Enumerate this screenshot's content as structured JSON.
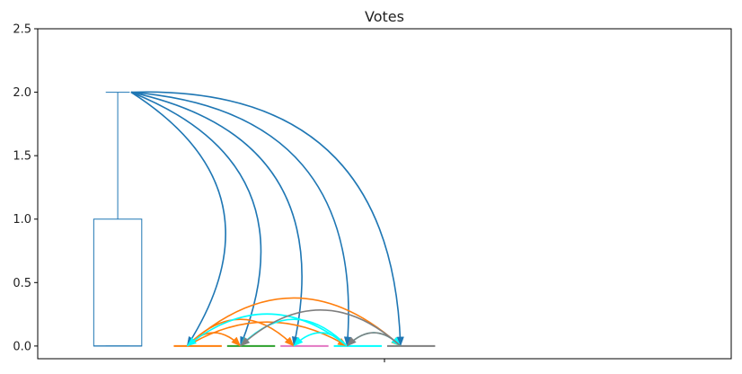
{
  "chart_data": {
    "type": "boxplot-arcs",
    "title": "Votes",
    "xlabel": "",
    "ylabel": "",
    "xlim": [
      -1.3,
      1.3
    ],
    "ylim": [
      -0.1,
      2.5
    ],
    "yticks": [
      0.0,
      0.5,
      1.0,
      1.5,
      2.0,
      2.5
    ],
    "ytick_labels": [
      "0.0",
      "0.5",
      "1.0",
      "1.5",
      "2.0",
      "2.5"
    ],
    "xticks": [
      0
    ],
    "xtick_labels": [
      ""
    ],
    "box": {
      "x": -1.0,
      "width": 0.18,
      "q1": 0.0,
      "median": 0.0,
      "q3": 1.0,
      "whisker_low": 0.0,
      "whisker_high": 2.0,
      "color": "#1f77b4"
    },
    "segments": [
      {
        "name": "",
        "x_start": -0.79,
        "x_end": -0.61,
        "y": 0.0,
        "color": "#ff7f0e"
      },
      {
        "name": "",
        "x_start": -0.59,
        "x_end": -0.41,
        "y": 0.0,
        "color": "#2ca02c"
      },
      {
        "name": "",
        "x_start": -0.39,
        "x_end": -0.21,
        "y": 0.0,
        "color": "#e377c2"
      },
      {
        "name": "",
        "x_start": -0.19,
        "x_end": -0.01,
        "y": 0.0,
        "color": "#00ffff"
      },
      {
        "name": "",
        "x_start": 0.01,
        "x_end": 0.19,
        "y": 0.0,
        "color": "#7f7f7f"
      }
    ],
    "arcs": [
      {
        "from": [
          -0.95,
          2.0
        ],
        "to": [
          -0.74,
          0.0
        ],
        "color": "#1f77b4",
        "bend": 0.5
      },
      {
        "from": [
          -0.95,
          2.0
        ],
        "to": [
          -0.54,
          0.0
        ],
        "color": "#1f77b4",
        "bend": 0.5
      },
      {
        "from": [
          -0.95,
          2.0
        ],
        "to": [
          -0.34,
          0.0
        ],
        "color": "#1f77b4",
        "bend": 0.5
      },
      {
        "from": [
          -0.95,
          2.0
        ],
        "to": [
          -0.14,
          0.0
        ],
        "color": "#1f77b4",
        "bend": 0.5
      },
      {
        "from": [
          -0.95,
          2.0
        ],
        "to": [
          0.06,
          0.0
        ],
        "color": "#1f77b4",
        "bend": 0.5
      },
      {
        "from": [
          -0.74,
          0.0
        ],
        "to": [
          -0.54,
          0.0
        ],
        "color": "#ff7f0e",
        "bend": 0.5
      },
      {
        "from": [
          -0.74,
          0.0
        ],
        "to": [
          -0.34,
          0.0
        ],
        "color": "#ff7f0e",
        "bend": 0.5
      },
      {
        "from": [
          -0.74,
          0.0
        ],
        "to": [
          -0.14,
          0.0
        ],
        "color": "#ff7f0e",
        "bend": 0.3
      },
      {
        "from": [
          -0.74,
          0.0
        ],
        "to": [
          0.06,
          0.0
        ],
        "color": "#ff7f0e",
        "bend": 0.45
      },
      {
        "from": [
          -0.14,
          0.0
        ],
        "to": [
          -0.74,
          0.0
        ],
        "color": "#00ffff",
        "bend": 0.4
      },
      {
        "from": [
          -0.14,
          0.0
        ],
        "to": [
          -0.54,
          0.0
        ],
        "color": "#00ffff",
        "bend": 0.5
      },
      {
        "from": [
          -0.14,
          0.0
        ],
        "to": [
          -0.34,
          0.0
        ],
        "color": "#00ffff",
        "bend": 0.5
      },
      {
        "from": [
          -0.14,
          0.0
        ],
        "to": [
          0.06,
          0.0
        ],
        "color": "#00ffff",
        "bend": 0.5
      },
      {
        "from": [
          0.06,
          0.0
        ],
        "to": [
          -0.54,
          0.0
        ],
        "color": "#7f7f7f",
        "bend": 0.45
      },
      {
        "from": [
          0.06,
          0.0
        ],
        "to": [
          -0.14,
          0.0
        ],
        "color": "#7f7f7f",
        "bend": 0.5
      }
    ],
    "grid": false,
    "legend": "none"
  }
}
